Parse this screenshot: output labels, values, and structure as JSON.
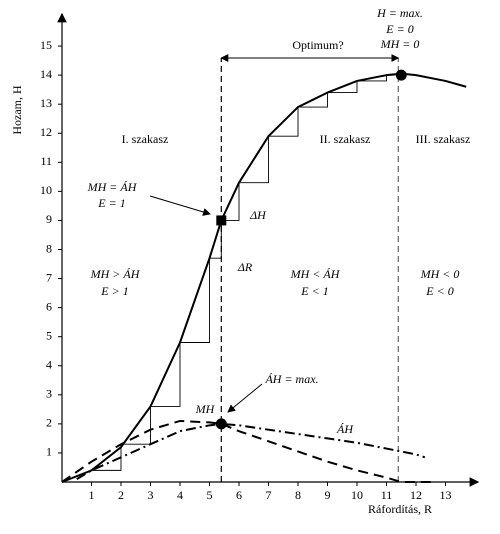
{
  "chart_data": {
    "type": "line",
    "xlabel": "Ráfordítás, R",
    "ylabel": "Hozam, H",
    "xlim": [
      0,
      14
    ],
    "ylim": [
      0,
      16
    ],
    "xticks": [
      1,
      2,
      3,
      4,
      5,
      6,
      7,
      8,
      9,
      10,
      11,
      12,
      13
    ],
    "yticks": [
      1,
      2,
      3,
      4,
      5,
      6,
      7,
      8,
      9,
      10,
      11,
      12,
      13,
      14,
      15
    ],
    "series": [
      {
        "color": "#000",
        "style": "solid",
        "x": [
          0,
          1,
          2,
          3,
          4,
          5,
          5.4,
          6,
          7,
          8,
          9,
          10,
          11,
          11.5,
          12,
          13,
          13.7
        ],
        "values": [
          0,
          0.4,
          1.2,
          2.6,
          4.8,
          7.7,
          9,
          10.3,
          11.9,
          12.9,
          13.4,
          13.8,
          14,
          14.05,
          14,
          13.8,
          13.6
        ]
      },
      {
        "name": "MH",
        "color": "#000",
        "style": "dashed",
        "x": [
          0,
          1,
          2,
          3,
          4,
          5,
          5.4,
          6,
          7,
          8,
          9,
          10,
          11,
          11.5,
          12.5
        ],
        "values": [
          0,
          0.7,
          1.3,
          1.8,
          2.1,
          2.05,
          2,
          1.75,
          1.4,
          1.05,
          0.7,
          0.4,
          0.15,
          0,
          0
        ]
      },
      {
        "name": "ÁH",
        "color": "#000",
        "style": "dashdot",
        "x": [
          0.5,
          1,
          2,
          3,
          4,
          5,
          5.4,
          6,
          7,
          8,
          9,
          10,
          11,
          12,
          12.3
        ],
        "values": [
          0.1,
          0.4,
          0.85,
          1.3,
          1.75,
          1.95,
          2,
          1.95,
          1.8,
          1.65,
          1.5,
          1.35,
          1.15,
          0.95,
          0.85
        ]
      },
      {
        "color": "#000",
        "style": "steps",
        "x": [
          1,
          2,
          3,
          4,
          5,
          5.4,
          6,
          7,
          8,
          9,
          10,
          11
        ],
        "values": [
          0.4,
          1.3,
          2.6,
          4.8,
          7.7,
          9,
          10.3,
          11.9,
          12.9,
          13.4,
          13.8,
          14
        ]
      }
    ],
    "vlines": [
      5.4,
      11.4
    ],
    "points": [
      {
        "x": 5.4,
        "y": 9,
        "shape": "square"
      },
      {
        "x": 11.5,
        "y": 14,
        "shape": "circle"
      },
      {
        "x": 5.4,
        "y": 2,
        "shape": "circle"
      }
    ],
    "annotations": [
      "H = max.",
      "E = 0",
      "MH = 0",
      "Optimum?",
      "I. szakasz",
      "II. szakasz",
      "III. szakasz",
      "MH = ÁH",
      "E = 1",
      "ΔH",
      "ΔR",
      "MH > ÁH",
      "E > 1",
      "MH < ÁH",
      "E < 1",
      "MH < 0",
      "E < 0",
      "ÁH = max."
    ]
  }
}
